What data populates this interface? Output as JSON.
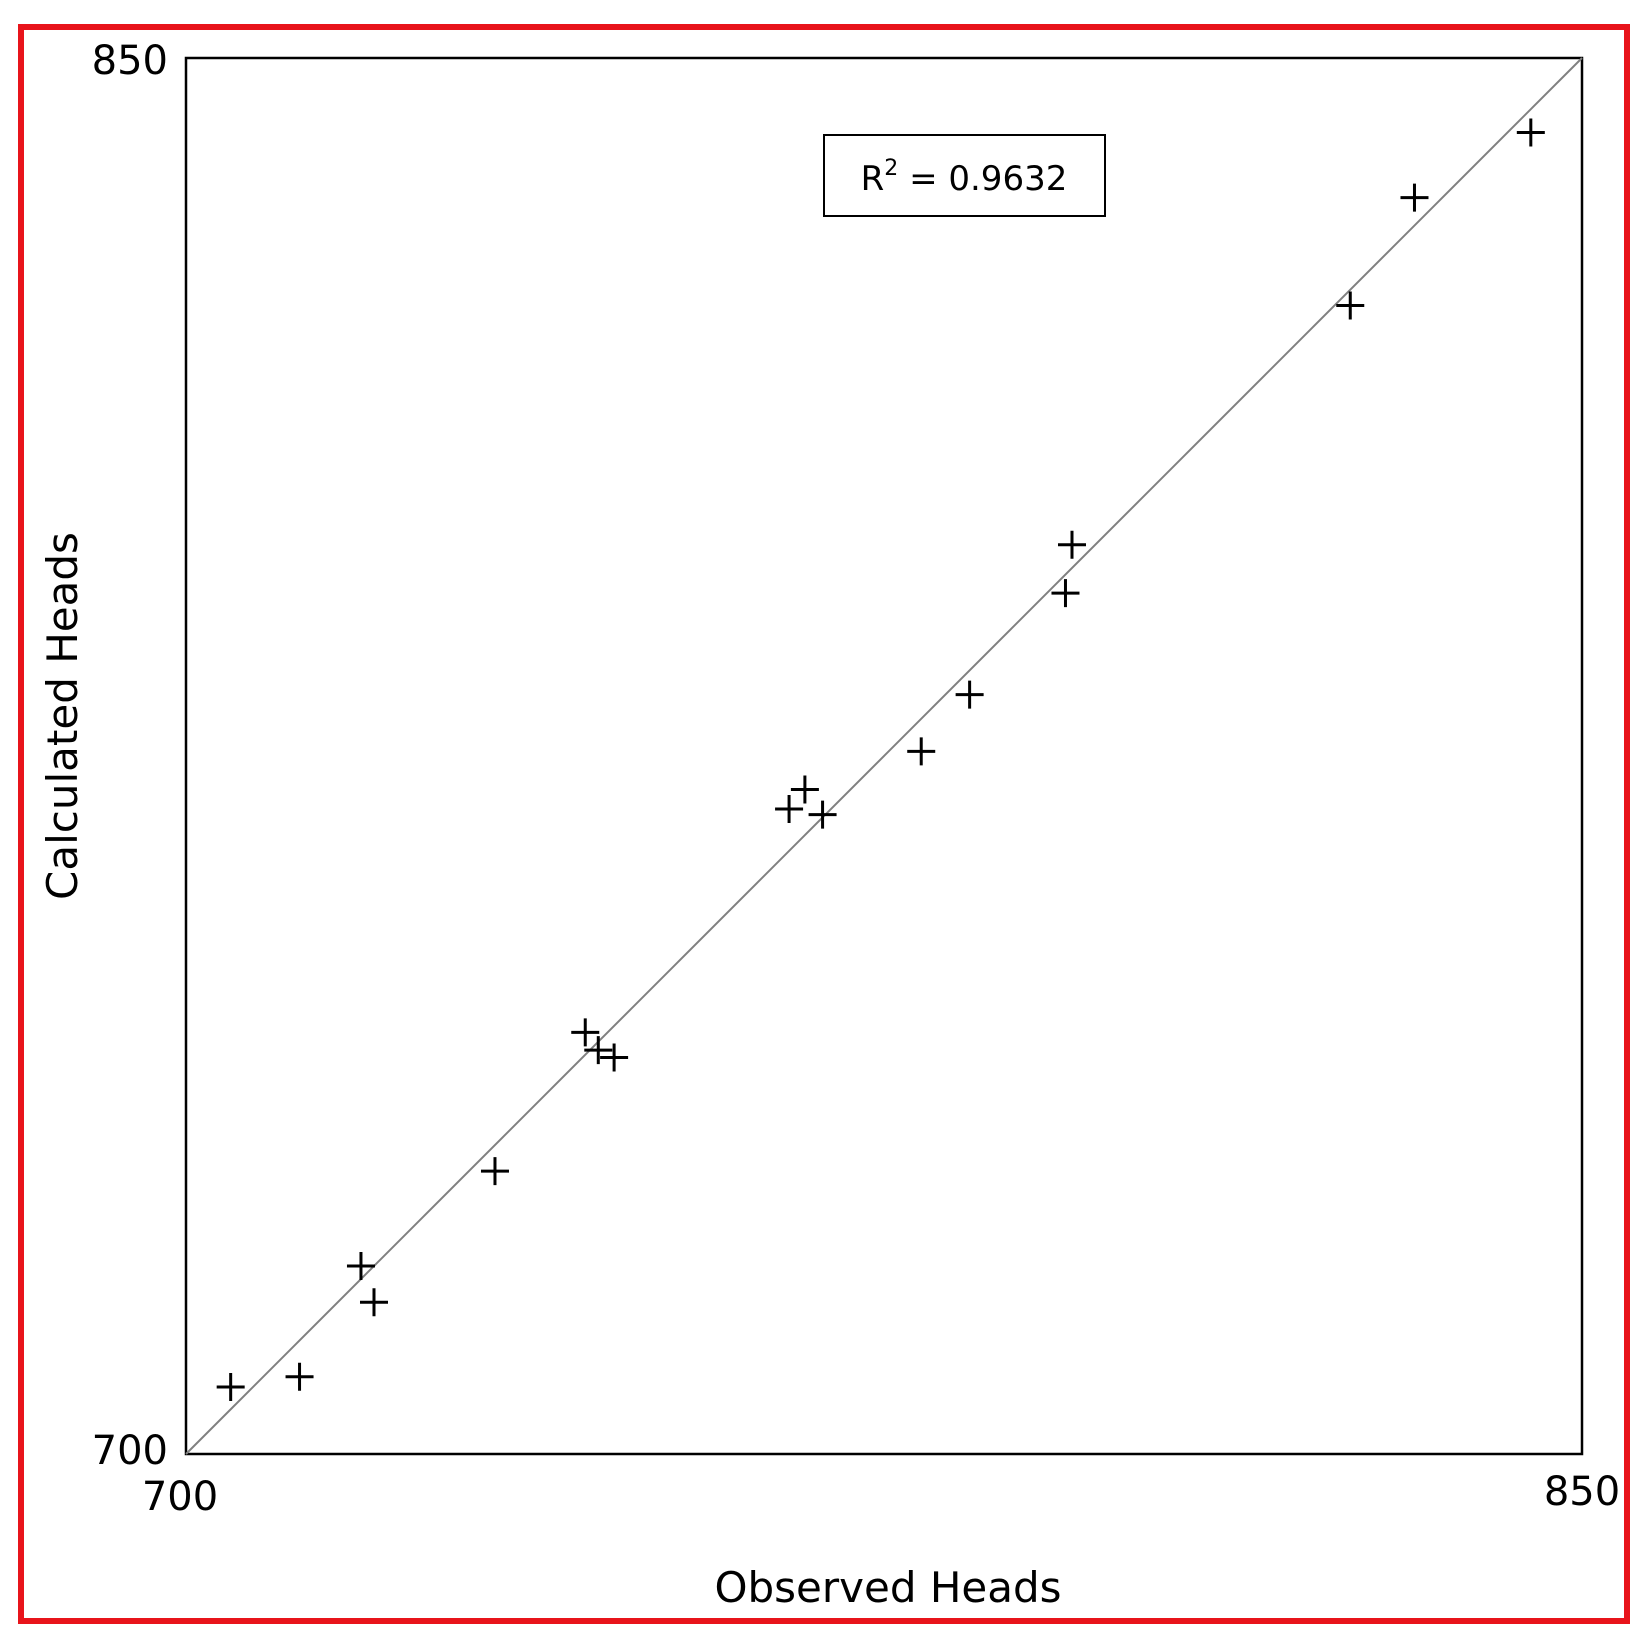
{
  "colors": {
    "frame": "#e8141b",
    "axes": "#000000",
    "reference_line": "#808080",
    "markers": "#000000"
  },
  "chart_data": {
    "type": "scatter",
    "xlabel": "Observed Heads",
    "ylabel": "Calculated Heads",
    "xlim": [
      700,
      850
    ],
    "ylim": [
      700,
      850
    ],
    "x_ticks": [
      "700",
      "850"
    ],
    "y_ticks": [
      "700",
      "850"
    ],
    "marker": "plus",
    "reference_line": {
      "type": "identity",
      "from": [
        700,
        700
      ],
      "to": [
        850,
        850
      ]
    },
    "annotation": {
      "label": "R",
      "superscript": "2",
      "text": " = 0.9632",
      "placement": "top-center"
    },
    "grid": false,
    "legend": "none",
    "points": [
      {
        "x": 704.8,
        "y": 707.2
      },
      {
        "x": 712.2,
        "y": 708.3
      },
      {
        "x": 718.8,
        "y": 720.2
      },
      {
        "x": 720.2,
        "y": 716.3
      },
      {
        "x": 733.2,
        "y": 730.4
      },
      {
        "x": 742.9,
        "y": 745.3
      },
      {
        "x": 744.3,
        "y": 743.4
      },
      {
        "x": 746.0,
        "y": 742.6
      },
      {
        "x": 764.8,
        "y": 769.3
      },
      {
        "x": 766.5,
        "y": 771.4
      },
      {
        "x": 768.4,
        "y": 768.7
      },
      {
        "x": 779.0,
        "y": 775.5
      },
      {
        "x": 784.2,
        "y": 781.6
      },
      {
        "x": 794.5,
        "y": 792.5
      },
      {
        "x": 795.2,
        "y": 797.7
      },
      {
        "x": 825.1,
        "y": 823.4
      },
      {
        "x": 832.0,
        "y": 835.0
      },
      {
        "x": 844.5,
        "y": 842.0
      }
    ]
  }
}
